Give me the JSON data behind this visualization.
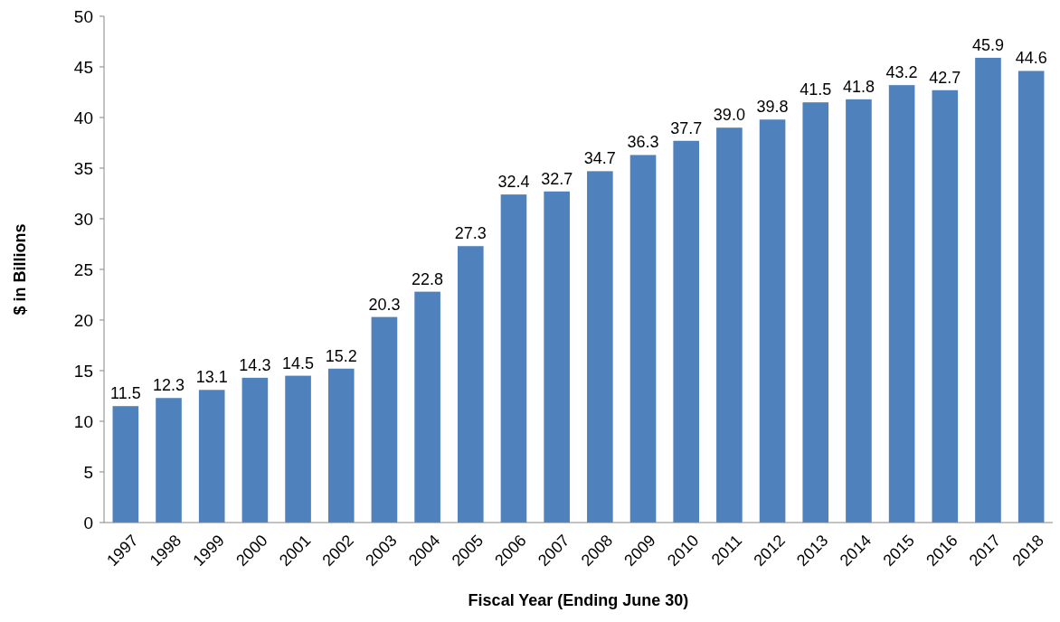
{
  "chart_data": {
    "type": "bar",
    "xlabel": "Fiscal Year (Ending June 30)",
    "ylabel": "$ in Billions",
    "categories": [
      "1997",
      "1998",
      "1999",
      "2000",
      "2001",
      "2002",
      "2003",
      "2004",
      "2005",
      "2006",
      "2007",
      "2008",
      "2009",
      "2010",
      "2011",
      "2012",
      "2013",
      "2014",
      "2015",
      "2016",
      "2017",
      "2018"
    ],
    "values": [
      11.5,
      12.3,
      13.1,
      14.3,
      14.5,
      15.2,
      20.3,
      22.8,
      27.3,
      32.4,
      32.7,
      34.7,
      36.3,
      37.7,
      39.0,
      39.8,
      41.5,
      41.8,
      43.2,
      42.7,
      45.9,
      44.6
    ],
    "value_labels": [
      "11.5",
      "12.3",
      "13.1",
      "14.3",
      "14.5",
      "15.2",
      "20.3",
      "22.8",
      "27.3",
      "32.4",
      "32.7",
      "34.7",
      "36.3",
      "37.7",
      "39.0",
      "39.8",
      "41.5",
      "41.8",
      "43.2",
      "42.7",
      "45.9",
      "44.6"
    ],
    "color": "#4f81bd",
    "ylim": [
      0,
      50
    ],
    "yticks": [
      0,
      5,
      10,
      15,
      20,
      25,
      30,
      35,
      40,
      45,
      50
    ],
    "grid": false
  }
}
